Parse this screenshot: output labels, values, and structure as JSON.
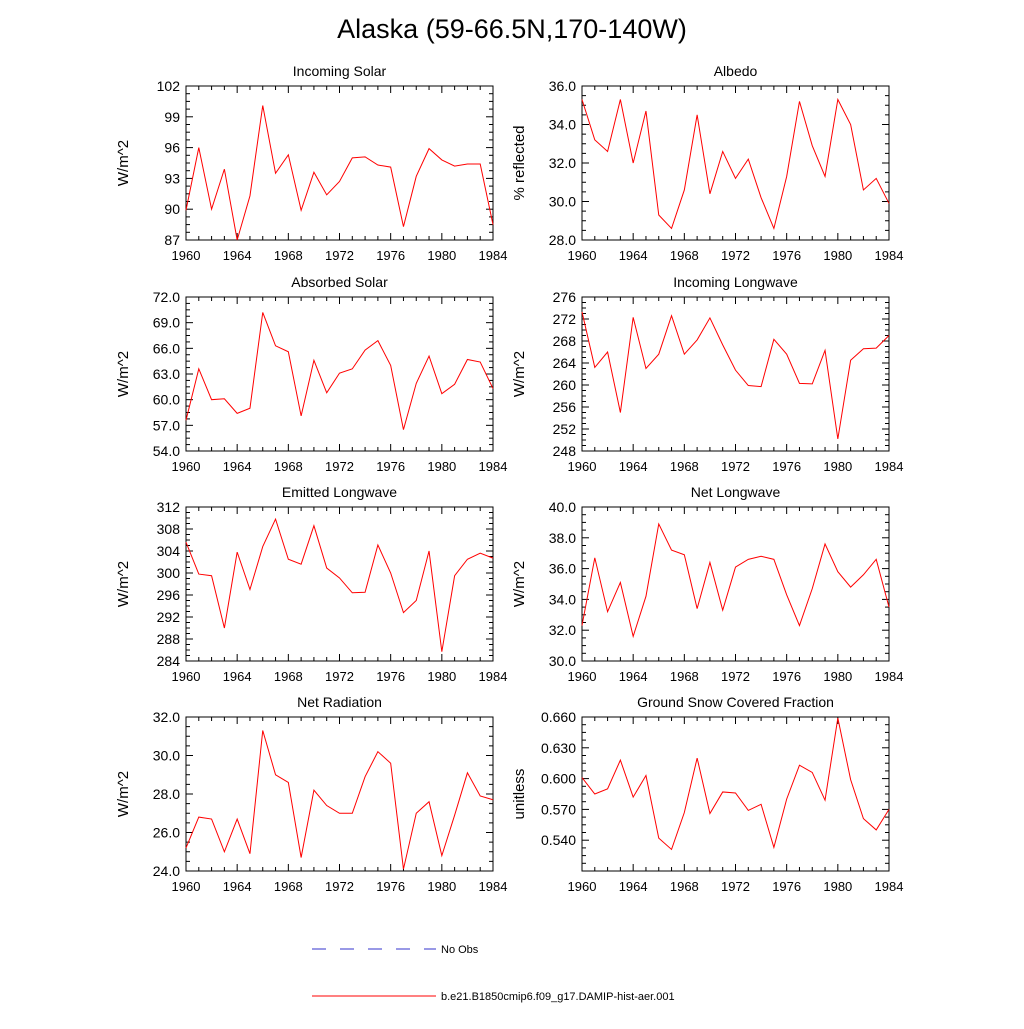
{
  "figure": {
    "title": "Alaska (59-66.5N,170-140W)"
  },
  "legend": {
    "items": [
      {
        "label": "No Obs",
        "color": "#3333cc",
        "dash": "dashed"
      },
      {
        "label": "b.e21.B1850cmip6.f09_g17.DAMIP-hist-aer.001",
        "color": "#ff0000",
        "dash": "solid"
      }
    ]
  },
  "chart_data": [
    {
      "type": "line",
      "title": "Incoming Solar",
      "xlabel": "",
      "ylabel": "W/m^2",
      "xlim": [
        1960,
        1984
      ],
      "ylim": [
        87,
        102
      ],
      "xticks": [
        "1960",
        "1964",
        "1968",
        "1972",
        "1976",
        "1980",
        "1984"
      ],
      "yticks": [
        "87",
        "90",
        "93",
        "96",
        "99",
        "102"
      ],
      "x": [
        1960,
        1961,
        1962,
        1963,
        1964,
        1965,
        1966,
        1967,
        1968,
        1969,
        1970,
        1971,
        1972,
        1973,
        1974,
        1975,
        1976,
        1977,
        1978,
        1979,
        1980,
        1981,
        1982,
        1983,
        1984
      ],
      "series": [
        {
          "name": "b.e21.B1850cmip6.f09_g17.DAMIP-hist-aer.001",
          "color": "#ff0000",
          "values": [
            89.9,
            96.0,
            90.0,
            93.9,
            87.0,
            91.3,
            100.1,
            93.5,
            95.3,
            89.9,
            93.6,
            91.4,
            92.7,
            95.0,
            95.1,
            94.3,
            94.1,
            88.3,
            93.2,
            95.9,
            94.8,
            94.2,
            94.4,
            94.4,
            88.5
          ]
        }
      ]
    },
    {
      "type": "line",
      "title": "Albedo",
      "xlabel": "",
      "ylabel": "% reflected",
      "xlim": [
        1960,
        1984
      ],
      "ylim": [
        28.0,
        36.0
      ],
      "xticks": [
        "1960",
        "1964",
        "1968",
        "1972",
        "1976",
        "1980",
        "1984"
      ],
      "yticks": [
        "28.0",
        "30.0",
        "32.0",
        "34.0",
        "36.0"
      ],
      "x": [
        1960,
        1961,
        1962,
        1963,
        1964,
        1965,
        1966,
        1967,
        1968,
        1969,
        1970,
        1971,
        1972,
        1973,
        1974,
        1975,
        1976,
        1977,
        1978,
        1979,
        1980,
        1981,
        1982,
        1983,
        1984
      ],
      "series": [
        {
          "name": "b.e21.B1850cmip6.f09_g17.DAMIP-hist-aer.001",
          "color": "#ff0000",
          "values": [
            35.3,
            33.2,
            32.6,
            35.3,
            32.0,
            34.7,
            29.3,
            28.6,
            30.6,
            34.5,
            30.4,
            32.6,
            31.2,
            32.2,
            30.2,
            28.6,
            31.3,
            35.2,
            32.9,
            31.3,
            35.3,
            34.0,
            30.6,
            31.2,
            29.9
          ]
        }
      ]
    },
    {
      "type": "line",
      "title": "Absorbed Solar",
      "xlabel": "",
      "ylabel": "W/m^2",
      "xlim": [
        1960,
        1984
      ],
      "ylim": [
        54.0,
        72.0
      ],
      "xticks": [
        "1960",
        "1964",
        "1968",
        "1972",
        "1976",
        "1980",
        "1984"
      ],
      "yticks": [
        "54.0",
        "57.0",
        "60.0",
        "63.0",
        "66.0",
        "69.0",
        "72.0"
      ],
      "x": [
        1960,
        1961,
        1962,
        1963,
        1964,
        1965,
        1966,
        1967,
        1968,
        1969,
        1970,
        1971,
        1972,
        1973,
        1974,
        1975,
        1976,
        1977,
        1978,
        1979,
        1980,
        1981,
        1982,
        1983,
        1984
      ],
      "series": [
        {
          "name": "b.e21.B1850cmip6.f09_g17.DAMIP-hist-aer.001",
          "color": "#ff0000",
          "values": [
            57.6,
            63.6,
            60.0,
            60.1,
            58.4,
            59.0,
            70.2,
            66.3,
            65.6,
            58.1,
            64.6,
            60.8,
            63.1,
            63.6,
            65.8,
            66.9,
            64.0,
            56.5,
            61.9,
            65.1,
            60.7,
            61.8,
            64.7,
            64.4,
            61.3
          ]
        }
      ]
    },
    {
      "type": "line",
      "title": "Incoming Longwave",
      "xlabel": "",
      "ylabel": "W/m^2",
      "xlim": [
        1960,
        1984
      ],
      "ylim": [
        248,
        276
      ],
      "xticks": [
        "1960",
        "1964",
        "1968",
        "1972",
        "1976",
        "1980",
        "1984"
      ],
      "yticks": [
        "248",
        "252",
        "256",
        "260",
        "264",
        "268",
        "272",
        "276"
      ],
      "x": [
        1960,
        1961,
        1962,
        1963,
        1964,
        1965,
        1966,
        1967,
        1968,
        1969,
        1970,
        1971,
        1972,
        1973,
        1974,
        1975,
        1976,
        1977,
        1978,
        1979,
        1980,
        1981,
        1982,
        1983,
        1984
      ],
      "series": [
        {
          "name": "b.e21.B1850cmip6.f09_g17.DAMIP-hist-aer.001",
          "color": "#ff0000",
          "values": [
            273.3,
            263.2,
            266.0,
            255.0,
            272.3,
            263.0,
            265.6,
            272.6,
            265.6,
            268.2,
            272.2,
            267.3,
            262.7,
            259.9,
            259.7,
            268.3,
            265.6,
            260.3,
            260.2,
            266.3,
            250.2,
            264.5,
            266.6,
            266.7,
            269.0
          ]
        }
      ]
    },
    {
      "type": "line",
      "title": "Emitted Longwave",
      "xlabel": "",
      "ylabel": "W/m^2",
      "xlim": [
        1960,
        1984
      ],
      "ylim": [
        284,
        312
      ],
      "xticks": [
        "1960",
        "1964",
        "1968",
        "1972",
        "1976",
        "1980",
        "1984"
      ],
      "yticks": [
        "284",
        "288",
        "292",
        "296",
        "300",
        "304",
        "308",
        "312"
      ],
      "x": [
        1960,
        1961,
        1962,
        1963,
        1964,
        1965,
        1966,
        1967,
        1968,
        1969,
        1970,
        1971,
        1972,
        1973,
        1974,
        1975,
        1976,
        1977,
        1978,
        1979,
        1980,
        1981,
        1982,
        1983,
        1984
      ],
      "series": [
        {
          "name": "b.e21.B1850cmip6.f09_g17.DAMIP-hist-aer.001",
          "color": "#ff0000",
          "values": [
            305.6,
            299.8,
            299.5,
            290.0,
            303.8,
            297.0,
            304.8,
            309.8,
            302.5,
            301.6,
            308.6,
            300.9,
            299.1,
            296.4,
            296.5,
            305.1,
            300.0,
            292.8,
            295.0,
            304.0,
            285.7,
            299.5,
            302.5,
            303.6,
            302.7
          ]
        }
      ]
    },
    {
      "type": "line",
      "title": "Net Longwave",
      "xlabel": "",
      "ylabel": "W/m^2",
      "xlim": [
        1960,
        1984
      ],
      "ylim": [
        30.0,
        40.0
      ],
      "xticks": [
        "1960",
        "1964",
        "1968",
        "1972",
        "1976",
        "1980",
        "1984"
      ],
      "yticks": [
        "30.0",
        "32.0",
        "34.0",
        "36.0",
        "38.0",
        "40.0"
      ],
      "x": [
        1960,
        1961,
        1962,
        1963,
        1964,
        1965,
        1966,
        1967,
        1968,
        1969,
        1970,
        1971,
        1972,
        1973,
        1974,
        1975,
        1976,
        1977,
        1978,
        1979,
        1980,
        1981,
        1982,
        1983,
        1984
      ],
      "series": [
        {
          "name": "b.e21.B1850cmip6.f09_g17.DAMIP-hist-aer.001",
          "color": "#ff0000",
          "values": [
            32.3,
            36.7,
            33.2,
            35.1,
            31.6,
            34.2,
            38.9,
            37.2,
            36.9,
            33.4,
            36.4,
            33.3,
            36.1,
            36.6,
            36.8,
            36.6,
            34.3,
            32.3,
            34.7,
            37.6,
            35.8,
            34.8,
            35.6,
            36.6,
            33.5
          ]
        }
      ]
    },
    {
      "type": "line",
      "title": "Net Radiation",
      "xlabel": "",
      "ylabel": "W/m^2",
      "xlim": [
        1960,
        1984
      ],
      "ylim": [
        24.0,
        32.0
      ],
      "xticks": [
        "1960",
        "1964",
        "1968",
        "1972",
        "1976",
        "1980",
        "1984"
      ],
      "yticks": [
        "24.0",
        "26.0",
        "28.0",
        "30.0",
        "32.0"
      ],
      "x": [
        1960,
        1961,
        1962,
        1963,
        1964,
        1965,
        1966,
        1967,
        1968,
        1969,
        1970,
        1971,
        1972,
        1973,
        1974,
        1975,
        1976,
        1977,
        1978,
        1979,
        1980,
        1981,
        1982,
        1983,
        1984
      ],
      "series": [
        {
          "name": "b.e21.B1850cmip6.f09_g17.DAMIP-hist-aer.001",
          "color": "#ff0000",
          "values": [
            25.2,
            26.8,
            26.7,
            25.0,
            26.7,
            24.9,
            31.3,
            29.0,
            28.6,
            24.7,
            28.2,
            27.4,
            27.0,
            27.0,
            28.9,
            30.2,
            29.6,
            24.1,
            27.0,
            27.6,
            24.8,
            26.9,
            29.1,
            27.9,
            27.7
          ]
        }
      ]
    },
    {
      "type": "line",
      "title": "Ground Snow Covered Fraction",
      "xlabel": "",
      "ylabel": "unitless",
      "xlim": [
        1960,
        1984
      ],
      "ylim": [
        0.51,
        0.66
      ],
      "xticks": [
        "1960",
        "1964",
        "1968",
        "1972",
        "1976",
        "1980",
        "1984"
      ],
      "yticks": [
        "0.540",
        "0.570",
        "0.600",
        "0.630",
        "0.660"
      ],
      "x": [
        1960,
        1961,
        1962,
        1963,
        1964,
        1965,
        1966,
        1967,
        1968,
        1969,
        1970,
        1971,
        1972,
        1973,
        1974,
        1975,
        1976,
        1977,
        1978,
        1979,
        1980,
        1981,
        1982,
        1983,
        1984
      ],
      "series": [
        {
          "name": "b.e21.B1850cmip6.f09_g17.DAMIP-hist-aer.001",
          "color": "#ff0000",
          "values": [
            0.601,
            0.585,
            0.59,
            0.618,
            0.582,
            0.603,
            0.542,
            0.531,
            0.567,
            0.62,
            0.566,
            0.587,
            0.586,
            0.569,
            0.575,
            0.533,
            0.58,
            0.613,
            0.606,
            0.579,
            0.659,
            0.599,
            0.561,
            0.55,
            0.57
          ]
        }
      ]
    }
  ]
}
